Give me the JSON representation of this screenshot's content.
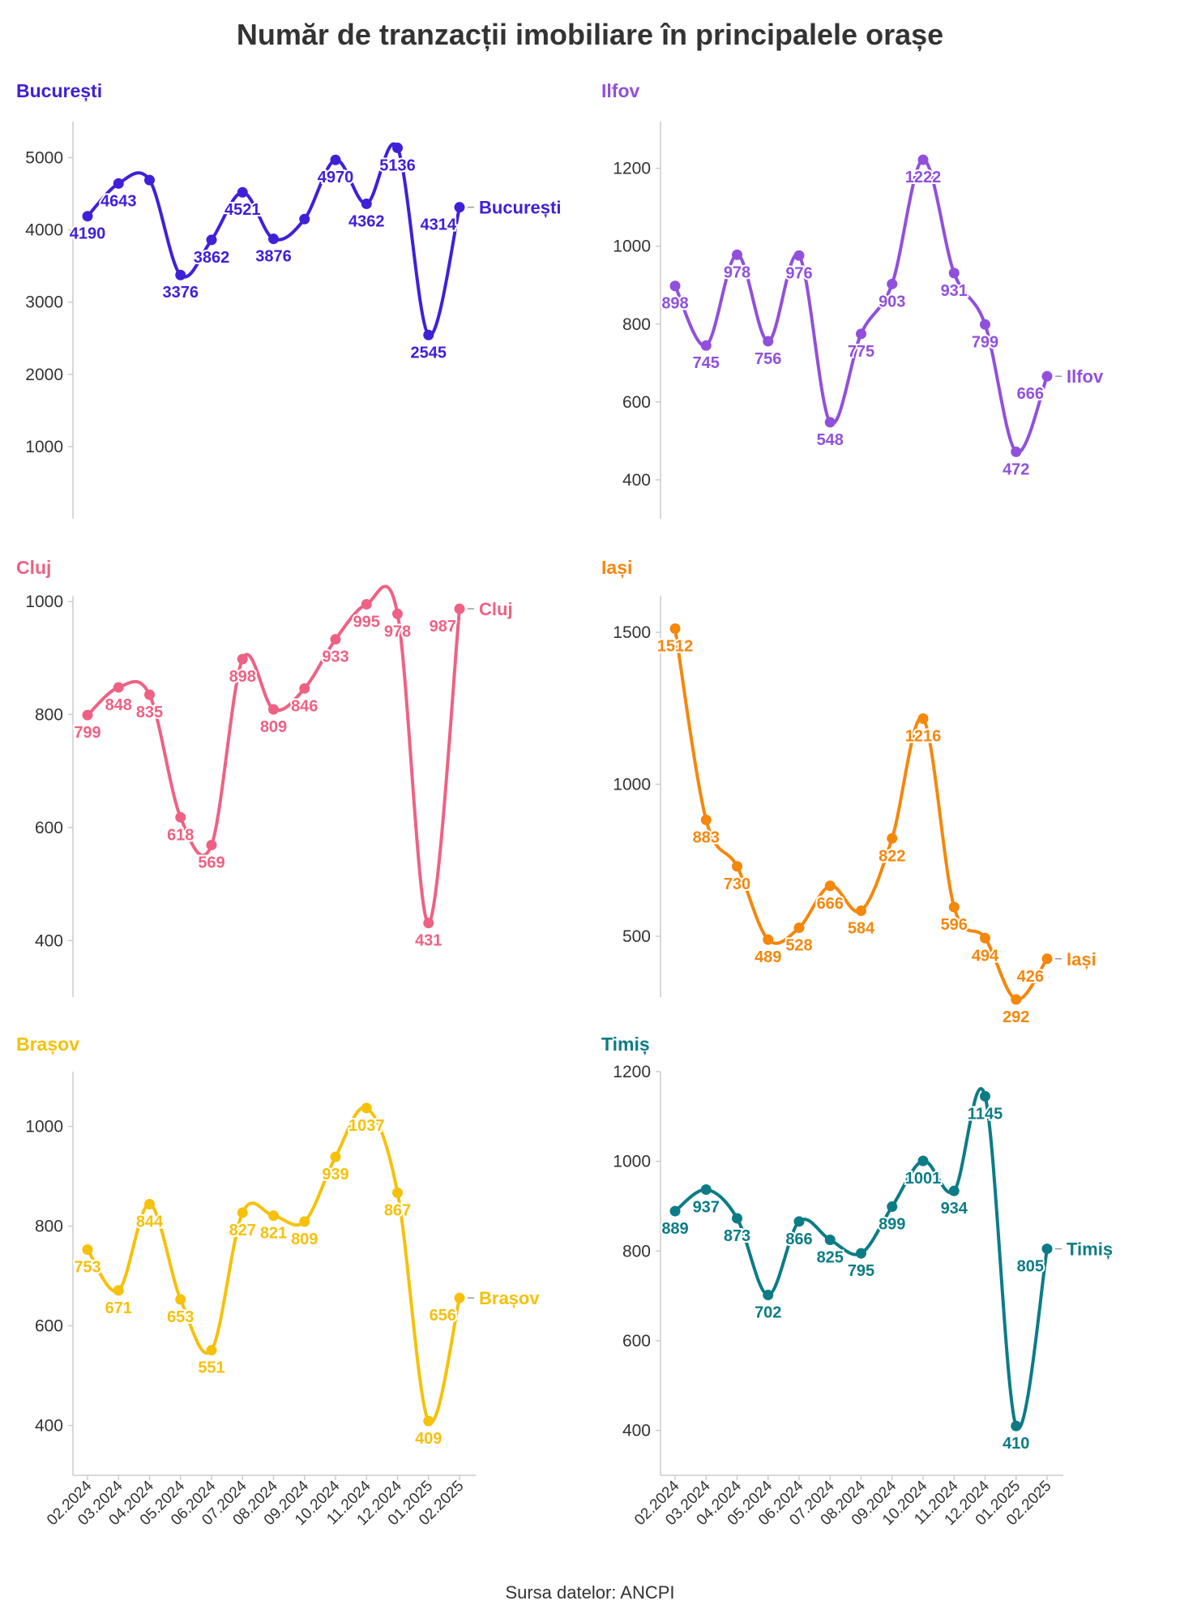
{
  "title": "Număr de tranzacții imobiliare în principalele orașe",
  "source": "Sursa datelor: ANCPI",
  "chart_data": [
    {
      "type": "line",
      "title": "București",
      "color": "#3f20d9",
      "x": [
        "02.2024",
        "03.2024",
        "04.2024",
        "05.2024",
        "06.2024",
        "07.2024",
        "08.2024",
        "09.2024",
        "10.2024",
        "11.2024",
        "12.2024",
        "01.2025",
        "02.2025"
      ],
      "series": [
        {
          "name": "București",
          "values": [
            4190,
            4643,
            4690,
            3376,
            3862,
            4521,
            3876,
            4150,
            4970,
            4362,
            5136,
            2545,
            4314
          ]
        }
      ],
      "labels": [
        "4190",
        "4643",
        "",
        "3376",
        "3862",
        "4521",
        "3876",
        "",
        "4970",
        "4362",
        "5136",
        "2545",
        "4314"
      ],
      "yticks": [
        "1000",
        "2000",
        "3000",
        "4000",
        "5000"
      ],
      "ylim": [
        0,
        5500
      ],
      "grid": false
    },
    {
      "type": "line",
      "title": "Ilfov",
      "color": "#9150dc",
      "x": [
        "02.2024",
        "03.2024",
        "04.2024",
        "05.2024",
        "06.2024",
        "07.2024",
        "08.2024",
        "09.2024",
        "10.2024",
        "11.2024",
        "12.2024",
        "01.2025",
        "02.2025"
      ],
      "series": [
        {
          "name": "Ilfov",
          "values": [
            898,
            745,
            978,
            756,
            976,
            548,
            775,
            903,
            1222,
            931,
            799,
            472,
            666
          ]
        }
      ],
      "labels": [
        "898",
        "745",
        "978",
        "756",
        "976",
        "548",
        "775",
        "903",
        "1222",
        "931",
        "799",
        "472",
        "666"
      ],
      "yticks": [
        "400",
        "600",
        "800",
        "1000",
        "1200"
      ],
      "ylim": [
        300,
        1320
      ],
      "grid": false
    },
    {
      "type": "line",
      "title": "Cluj",
      "color": "#ef6183",
      "x": [
        "02.2024",
        "03.2024",
        "04.2024",
        "05.2024",
        "06.2024",
        "07.2024",
        "08.2024",
        "09.2024",
        "10.2024",
        "11.2024",
        "12.2024",
        "01.2025",
        "02.2025"
      ],
      "series": [
        {
          "name": "Cluj",
          "values": [
            799,
            848,
            835,
            618,
            569,
            898,
            809,
            846,
            933,
            995,
            978,
            431,
            987
          ]
        }
      ],
      "labels": [
        "799",
        "848",
        "835",
        "618",
        "569",
        "898",
        "809",
        "846",
        "933",
        "995",
        "978",
        "431",
        "987"
      ],
      "yticks": [
        "400",
        "600",
        "800",
        "1000"
      ],
      "ylim": [
        300,
        1010
      ],
      "grid": false
    },
    {
      "type": "line",
      "title": "Iași",
      "color": "#f5870c",
      "x": [
        "02.2024",
        "03.2024",
        "04.2024",
        "05.2024",
        "06.2024",
        "07.2024",
        "08.2024",
        "09.2024",
        "10.2024",
        "11.2024",
        "12.2024",
        "01.2025",
        "02.2025"
      ],
      "series": [
        {
          "name": "Iași",
          "values": [
            1512,
            883,
            730,
            489,
            528,
            666,
            584,
            822,
            1216,
            596,
            494,
            292,
            426
          ]
        }
      ],
      "labels": [
        "1512",
        "883",
        "730",
        "489",
        "528",
        "666",
        "584",
        "822",
        "1216",
        "596",
        "494",
        "292",
        "426"
      ],
      "yticks": [
        "500",
        "1000",
        "1500"
      ],
      "ylim": [
        300,
        1620
      ],
      "grid": false
    },
    {
      "type": "line",
      "title": "Brașov",
      "color": "#f6c10a",
      "x": [
        "02.2024",
        "03.2024",
        "04.2024",
        "05.2024",
        "06.2024",
        "07.2024",
        "08.2024",
        "09.2024",
        "10.2024",
        "11.2024",
        "12.2024",
        "01.2025",
        "02.2025"
      ],
      "series": [
        {
          "name": "Brașov",
          "values": [
            753,
            671,
            844,
            653,
            551,
            827,
            821,
            809,
            939,
            1037,
            867,
            409,
            656
          ]
        }
      ],
      "labels": [
        "753",
        "671",
        "844",
        "653",
        "551",
        "827",
        "821",
        "809",
        "939",
        "1037",
        "867",
        "409",
        "656"
      ],
      "yticks": [
        "400",
        "600",
        "800",
        "1000"
      ],
      "ylim": [
        300,
        1110
      ],
      "grid": false
    },
    {
      "type": "line",
      "title": "Timiș",
      "color": "#0b7c86",
      "x": [
        "02.2024",
        "03.2024",
        "04.2024",
        "05.2024",
        "06.2024",
        "07.2024",
        "08.2024",
        "09.2024",
        "10.2024",
        "11.2024",
        "12.2024",
        "01.2025",
        "02.2025"
      ],
      "series": [
        {
          "name": "Timiș",
          "values": [
            889,
            937,
            873,
            702,
            866,
            825,
            795,
            899,
            1001,
            934,
            1145,
            410,
            805
          ]
        }
      ],
      "labels": [
        "889",
        "937",
        "873",
        "702",
        "866",
        "825",
        "795",
        "899",
        "1001",
        "934",
        "1145",
        "410",
        "805"
      ],
      "yticks": [
        "400",
        "600",
        "800",
        "1000",
        "1200"
      ],
      "ylim": [
        300,
        1200
      ],
      "grid": false
    }
  ]
}
